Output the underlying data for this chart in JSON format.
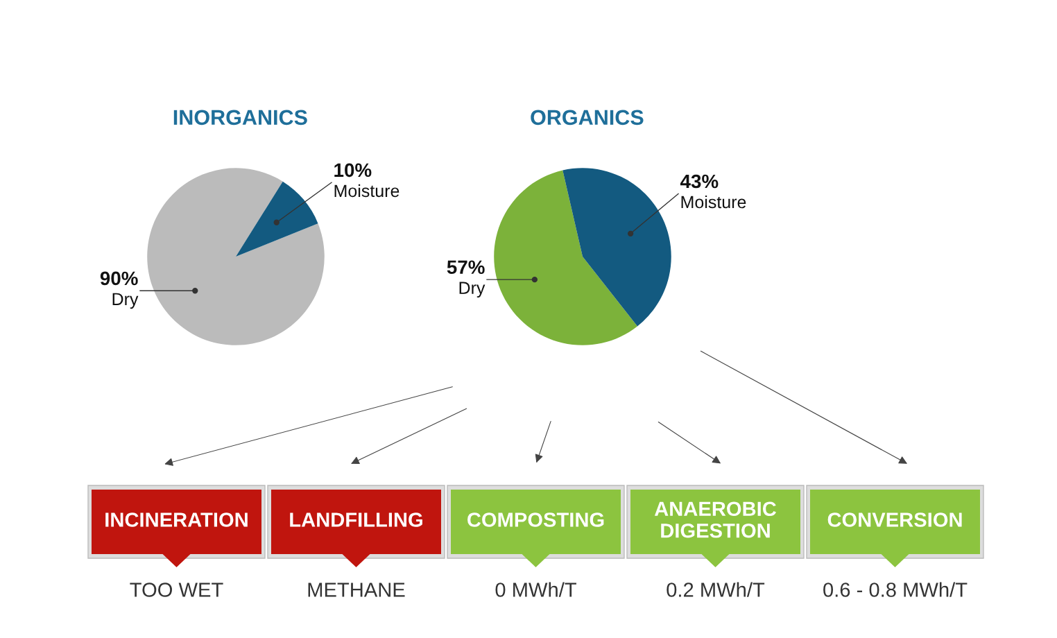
{
  "chart_data": [
    {
      "type": "pie",
      "title": "INORGANICS",
      "categories": [
        "Dry",
        "Moisture"
      ],
      "values": [
        90,
        10
      ],
      "colors": [
        "#bbbbbb",
        "#135a80"
      ],
      "value_labels": [
        "90%",
        "10%"
      ]
    },
    {
      "type": "pie",
      "title": "ORGANICS",
      "categories": [
        "Dry",
        "Moisture"
      ],
      "values": [
        57,
        43
      ],
      "colors": [
        "#7cb23a",
        "#135a80"
      ],
      "value_labels": [
        "57%",
        "43%"
      ]
    },
    {
      "type": "other",
      "categories": [
        "INCINERATION",
        "LANDFILLING",
        "COMPOSTING",
        "ANAEROBIC\nDIGESTION",
        "CONVERSION"
      ],
      "value_labels": [
        "TOO WET",
        "METHANE",
        "0 MWh/T",
        "0.2 MWh/T",
        "0.6 - 0.8 MWh/T"
      ],
      "colors": [
        "#c0150e",
        "#c0150e",
        "#8cc43f",
        "#8cc43f",
        "#8cc43f"
      ]
    }
  ]
}
